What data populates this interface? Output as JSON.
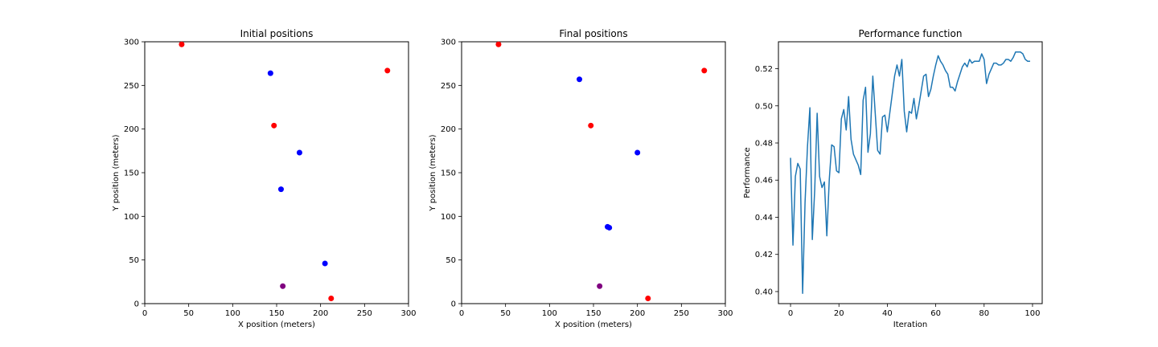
{
  "chart_data": [
    {
      "type": "scatter",
      "title": "Initial positions",
      "xlabel": "X position (meters)",
      "ylabel": "Y position (meters)",
      "xlim": [
        0,
        300
      ],
      "ylim": [
        0,
        300
      ],
      "xticks": [
        "0",
        "50",
        "100",
        "150",
        "200",
        "250",
        "300"
      ],
      "yticks": [
        "0",
        "50",
        "100",
        "150",
        "200",
        "250",
        "300"
      ],
      "grid": false,
      "points": [
        {
          "x": 42,
          "y": 297,
          "color": "#ff0000"
        },
        {
          "x": 276,
          "y": 267,
          "color": "#ff0000"
        },
        {
          "x": 147,
          "y": 204,
          "color": "#ff0000"
        },
        {
          "x": 212,
          "y": 6,
          "color": "#ff0000"
        },
        {
          "x": 143,
          "y": 264,
          "color": "#0000ff"
        },
        {
          "x": 176,
          "y": 173,
          "color": "#0000ff"
        },
        {
          "x": 155,
          "y": 131,
          "color": "#0000ff"
        },
        {
          "x": 205,
          "y": 46,
          "color": "#0000ff"
        },
        {
          "x": 157,
          "y": 20,
          "color": "#800080"
        }
      ]
    },
    {
      "type": "scatter",
      "title": "Final positions",
      "xlabel": "X position (meters)",
      "ylabel": "Y position (meters)",
      "xlim": [
        0,
        300
      ],
      "ylim": [
        0,
        300
      ],
      "xticks": [
        "0",
        "50",
        "100",
        "150",
        "200",
        "250",
        "300"
      ],
      "yticks": [
        "0",
        "50",
        "100",
        "150",
        "200",
        "250",
        "300"
      ],
      "grid": false,
      "points": [
        {
          "x": 42,
          "y": 297,
          "color": "#ff0000"
        },
        {
          "x": 276,
          "y": 267,
          "color": "#ff0000"
        },
        {
          "x": 147,
          "y": 204,
          "color": "#ff0000"
        },
        {
          "x": 212,
          "y": 6,
          "color": "#ff0000"
        },
        {
          "x": 134,
          "y": 257,
          "color": "#0000ff"
        },
        {
          "x": 200,
          "y": 173,
          "color": "#0000ff"
        },
        {
          "x": 166,
          "y": 88,
          "color": "#0000ff"
        },
        {
          "x": 168,
          "y": 87,
          "color": "#0000ff"
        },
        {
          "x": 157,
          "y": 20,
          "color": "#800080"
        }
      ]
    },
    {
      "type": "line",
      "title": "Performance function",
      "xlabel": "Iteration",
      "ylabel": "Performance",
      "xlim": [
        -5,
        104
      ],
      "ylim": [
        0.3935,
        0.5345
      ],
      "xticks": [
        "0",
        "20",
        "40",
        "60",
        "80",
        "100"
      ],
      "yticks": [
        "0.40",
        "0.42",
        "0.44",
        "0.46",
        "0.48",
        "0.50",
        "0.52"
      ],
      "grid": false,
      "color": "#1f77b4",
      "x": [
        0,
        1,
        2,
        3,
        4,
        5,
        6,
        7,
        8,
        9,
        10,
        11,
        12,
        13,
        14,
        15,
        16,
        17,
        18,
        19,
        20,
        21,
        22,
        23,
        24,
        25,
        26,
        27,
        28,
        29,
        30,
        31,
        32,
        33,
        34,
        35,
        36,
        37,
        38,
        39,
        40,
        41,
        42,
        43,
        44,
        45,
        46,
        47,
        48,
        49,
        50,
        51,
        52,
        53,
        54,
        55,
        56,
        57,
        58,
        59,
        60,
        61,
        62,
        63,
        64,
        65,
        66,
        67,
        68,
        69,
        70,
        71,
        72,
        73,
        74,
        75,
        76,
        77,
        78,
        79,
        80,
        81,
        82,
        83,
        84,
        85,
        86,
        87,
        88,
        89,
        90,
        91,
        92,
        93,
        94,
        95,
        96,
        97,
        98,
        99
      ],
      "y": [
        0.472,
        0.425,
        0.462,
        0.469,
        0.466,
        0.399,
        0.448,
        0.478,
        0.499,
        0.428,
        0.455,
        0.496,
        0.462,
        0.456,
        0.459,
        0.43,
        0.46,
        0.479,
        0.478,
        0.465,
        0.464,
        0.493,
        0.498,
        0.487,
        0.505,
        0.482,
        0.474,
        0.471,
        0.468,
        0.463,
        0.503,
        0.51,
        0.475,
        0.485,
        0.516,
        0.496,
        0.476,
        0.474,
        0.494,
        0.495,
        0.486,
        0.496,
        0.506,
        0.516,
        0.522,
        0.516,
        0.525,
        0.497,
        0.486,
        0.497,
        0.496,
        0.504,
        0.493,
        0.5,
        0.508,
        0.516,
        0.517,
        0.505,
        0.509,
        0.516,
        0.522,
        0.527,
        0.524,
        0.522,
        0.519,
        0.517,
        0.51,
        0.51,
        0.508,
        0.513,
        0.517,
        0.521,
        0.523,
        0.521,
        0.525,
        0.523,
        0.524,
        0.524,
        0.524,
        0.528,
        0.525,
        0.512,
        0.517,
        0.52,
        0.523,
        0.523,
        0.522,
        0.522,
        0.523,
        0.525,
        0.525,
        0.524,
        0.526,
        0.529,
        0.529,
        0.529,
        0.528,
        0.525,
        0.524,
        0.524
      ]
    }
  ]
}
